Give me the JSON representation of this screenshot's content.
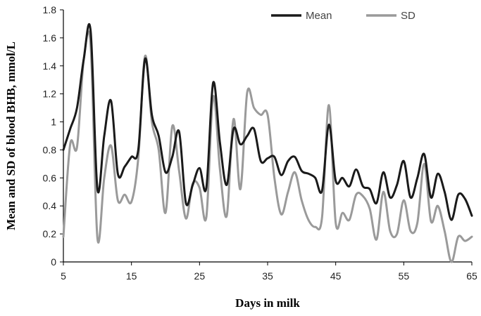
{
  "chart_data": {
    "type": "line",
    "xlabel": "Days in milk",
    "ylabel": "Mean and SD of blood BHB, mmol/L",
    "xlim": [
      5,
      65
    ],
    "ylim": [
      0,
      1.8
    ],
    "x_ticks": [
      "5",
      "15",
      "25",
      "35",
      "45",
      "55",
      "65"
    ],
    "y_ticks": [
      "0",
      "0.2",
      "0.4",
      "0.6",
      "0.8",
      "1",
      "1.2",
      "1.4",
      "1.6",
      "1.8"
    ],
    "legend_position": "top-right",
    "grid": false,
    "x": [
      5,
      6,
      7,
      8,
      9,
      10,
      11,
      12,
      13,
      14,
      15,
      16,
      17,
      18,
      19,
      20,
      21,
      22,
      23,
      24,
      25,
      26,
      27,
      28,
      29,
      30,
      31,
      32,
      33,
      34,
      35,
      36,
      37,
      38,
      39,
      40,
      41,
      42,
      43,
      44,
      45,
      46,
      47,
      48,
      49,
      50,
      51,
      52,
      53,
      54,
      55,
      56,
      57,
      58,
      59,
      60,
      61,
      62,
      63,
      64,
      65
    ],
    "series": [
      {
        "name": "Mean",
        "color": "#1a1a1a",
        "values": [
          0.8,
          0.95,
          1.1,
          1.45,
          1.65,
          0.52,
          0.9,
          1.15,
          0.63,
          0.68,
          0.75,
          0.8,
          1.45,
          1.05,
          0.9,
          0.64,
          0.75,
          0.93,
          0.42,
          0.55,
          0.67,
          0.53,
          1.28,
          0.85,
          0.55,
          0.95,
          0.84,
          0.9,
          0.95,
          0.72,
          0.74,
          0.75,
          0.62,
          0.72,
          0.75,
          0.65,
          0.63,
          0.6,
          0.51,
          0.98,
          0.58,
          0.6,
          0.54,
          0.66,
          0.54,
          0.52,
          0.42,
          0.64,
          0.46,
          0.55,
          0.72,
          0.46,
          0.6,
          0.77,
          0.46,
          0.63,
          0.5,
          0.3,
          0.48,
          0.45,
          0.33
        ]
      },
      {
        "name": "SD",
        "color": "#9a9a9a",
        "values": [
          0.18,
          0.84,
          0.82,
          1.45,
          1.55,
          0.17,
          0.6,
          0.83,
          0.44,
          0.48,
          0.43,
          0.74,
          1.47,
          1.0,
          0.8,
          0.35,
          0.97,
          0.65,
          0.31,
          0.56,
          0.53,
          0.32,
          1.18,
          0.66,
          0.33,
          1.02,
          0.52,
          1.21,
          1.1,
          1.05,
          1.05,
          0.6,
          0.34,
          0.5,
          0.64,
          0.44,
          0.3,
          0.25,
          0.32,
          1.12,
          0.28,
          0.35,
          0.3,
          0.48,
          0.47,
          0.38,
          0.16,
          0.5,
          0.22,
          0.2,
          0.44,
          0.22,
          0.28,
          0.7,
          0.29,
          0.4,
          0.22,
          0.0,
          0.18,
          0.15,
          0.18
        ]
      }
    ]
  }
}
